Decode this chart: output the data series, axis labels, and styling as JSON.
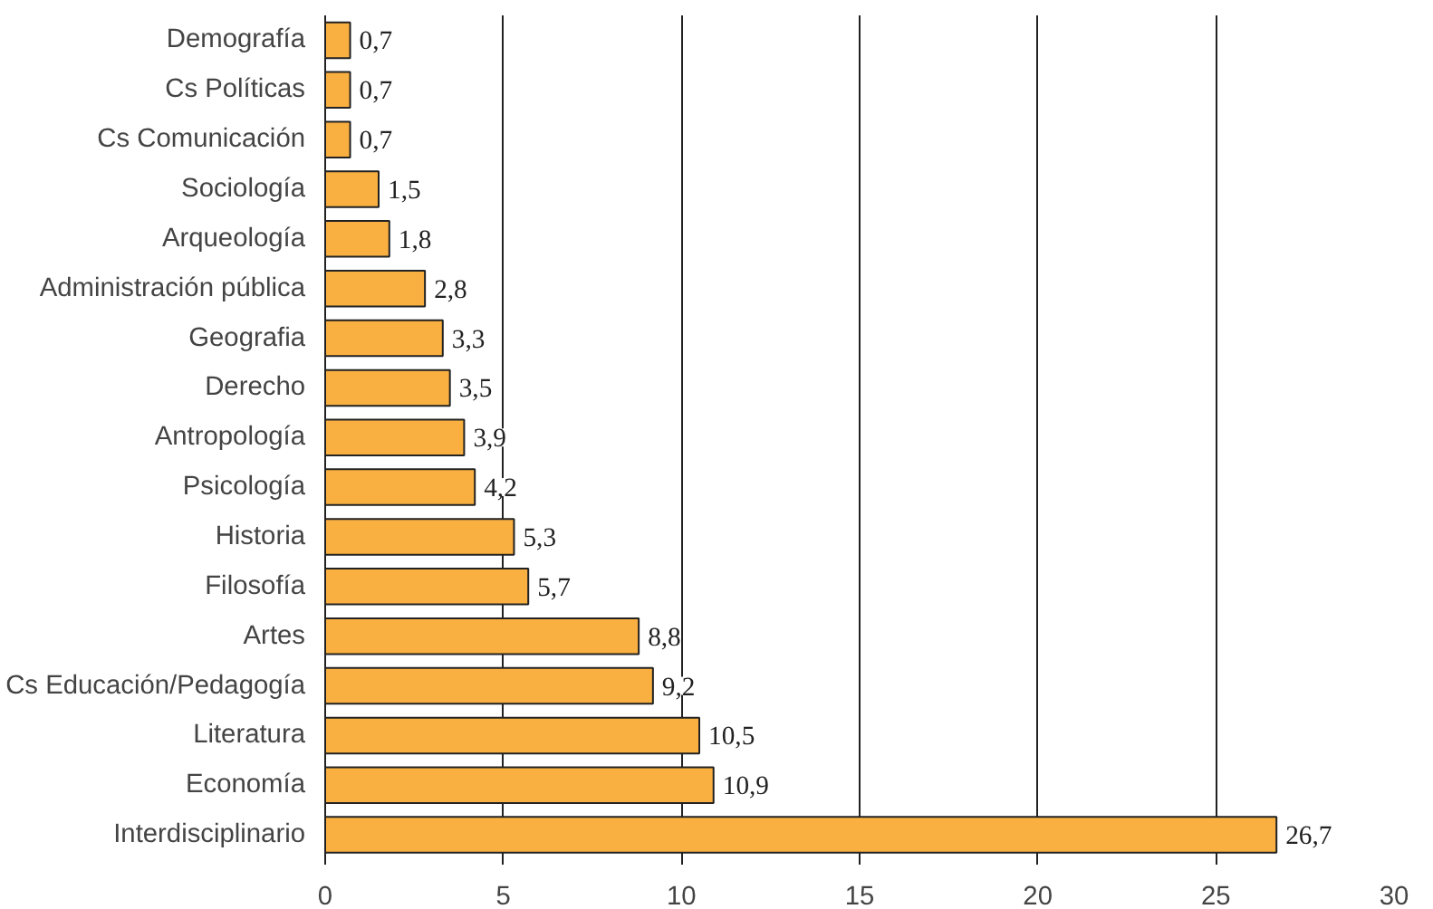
{
  "chart_data": {
    "type": "bar",
    "orientation": "horizontal",
    "categories": [
      "Demografía",
      "Cs Políticas",
      "Cs Comunicación",
      "Sociología",
      "Arqueología",
      "Administración pública",
      "Geografia",
      "Derecho",
      "Antropología",
      "Psicología",
      "Historia",
      "Filosofía",
      "Artes",
      "Cs Educación/Pedagogía",
      "Literatura",
      "Economía",
      "Interdisciplinario"
    ],
    "values": [
      0.7,
      0.7,
      0.7,
      1.5,
      1.8,
      2.8,
      3.3,
      3.5,
      3.9,
      4.2,
      5.3,
      5.7,
      8.8,
      9.2,
      10.5,
      10.9,
      26.7
    ],
    "value_labels": [
      "0,7",
      "0,7",
      "0,7",
      "1,5",
      "1,8",
      "2,8",
      "3,3",
      "3,5",
      "3,9",
      "4,2",
      "5,3",
      "5,7",
      "8,8",
      "9,2",
      "10,5",
      "10,9",
      "26,7"
    ],
    "color": "#f9b041",
    "xlim": [
      0,
      30
    ],
    "xticks": [
      0,
      5,
      10,
      15,
      20,
      25,
      30
    ],
    "grid": "x"
  }
}
